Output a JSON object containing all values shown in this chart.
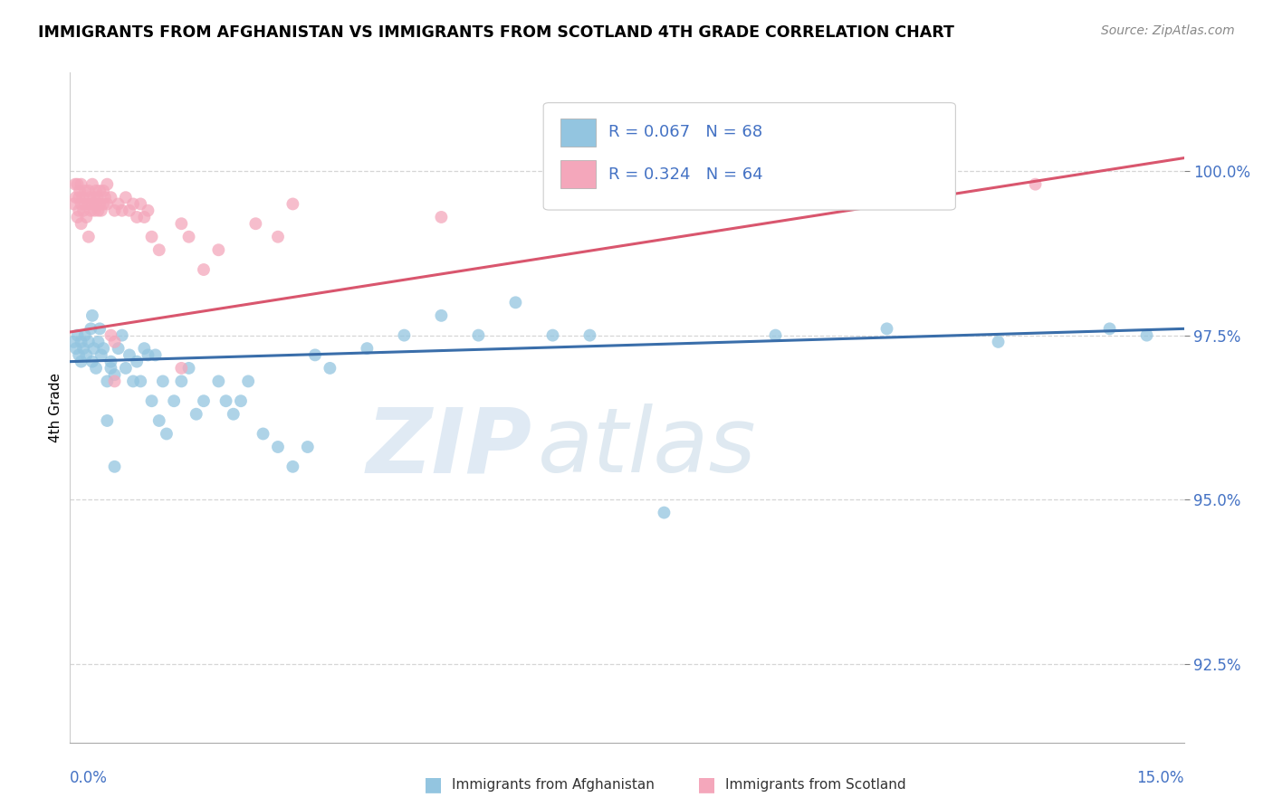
{
  "title": "IMMIGRANTS FROM AFGHANISTAN VS IMMIGRANTS FROM SCOTLAND 4TH GRADE CORRELATION CHART",
  "source": "Source: ZipAtlas.com",
  "ylabel": "4th Grade",
  "xlim": [
    0.0,
    15.0
  ],
  "ylim": [
    91.3,
    101.5
  ],
  "yticks": [
    92.5,
    95.0,
    97.5,
    100.0
  ],
  "ytick_labels": [
    "92.5%",
    "95.0%",
    "97.5%",
    "100.0%"
  ],
  "afghanistan_color": "#93c5e0",
  "scotland_color": "#f4a7bb",
  "afghanistan_line_color": "#3a6eaa",
  "scotland_line_color": "#d9566e",
  "afghanistan_R": 0.067,
  "afghanistan_N": 68,
  "scotland_R": 0.324,
  "scotland_N": 64,
  "afghanistan_label": "Immigrants from Afghanistan",
  "scotland_label": "Immigrants from Scotland",
  "watermark_zip": "ZIP",
  "watermark_atlas": "atlas",
  "af_line_x0": 0.0,
  "af_line_y0": 97.1,
  "af_line_x1": 15.0,
  "af_line_y1": 97.6,
  "sc_line_x0": 0.0,
  "sc_line_y0": 97.55,
  "sc_line_x1": 15.0,
  "sc_line_y1": 100.2,
  "afghanistan_scatter_x": [
    0.05,
    0.08,
    0.1,
    0.12,
    0.15,
    0.15,
    0.18,
    0.2,
    0.22,
    0.25,
    0.28,
    0.3,
    0.3,
    0.32,
    0.35,
    0.38,
    0.4,
    0.42,
    0.45,
    0.5,
    0.55,
    0.6,
    0.65,
    0.7,
    0.75,
    0.8,
    0.85,
    0.9,
    0.95,
    1.0,
    1.1,
    1.15,
    1.2,
    1.3,
    1.4,
    1.5,
    1.6,
    1.7,
    1.8,
    2.0,
    2.1,
    2.2,
    2.4,
    2.6,
    2.8,
    3.0,
    3.2,
    3.5,
    4.0,
    4.5,
    5.0,
    5.5,
    6.0,
    6.5,
    7.0,
    8.0,
    9.5,
    11.0,
    12.5,
    1.05,
    0.5,
    0.6,
    0.55,
    2.3,
    1.25,
    3.3,
    14.5,
    14.0
  ],
  "afghanistan_scatter_y": [
    97.4,
    97.3,
    97.5,
    97.2,
    97.4,
    97.1,
    97.3,
    97.5,
    97.2,
    97.4,
    97.6,
    97.8,
    97.1,
    97.3,
    97.0,
    97.4,
    97.6,
    97.2,
    97.3,
    96.8,
    97.1,
    96.9,
    97.3,
    97.5,
    97.0,
    97.2,
    96.8,
    97.1,
    96.8,
    97.3,
    96.5,
    97.2,
    96.2,
    96.0,
    96.5,
    96.8,
    97.0,
    96.3,
    96.5,
    96.8,
    96.5,
    96.3,
    96.8,
    96.0,
    95.8,
    95.5,
    95.8,
    97.0,
    97.3,
    97.5,
    97.8,
    97.5,
    98.0,
    97.5,
    97.5,
    94.8,
    97.5,
    97.6,
    97.4,
    97.2,
    96.2,
    95.5,
    97.0,
    96.5,
    96.8,
    97.2,
    97.5,
    97.6
  ],
  "scotland_scatter_x": [
    0.05,
    0.07,
    0.08,
    0.1,
    0.1,
    0.12,
    0.12,
    0.13,
    0.15,
    0.15,
    0.17,
    0.18,
    0.2,
    0.2,
    0.22,
    0.25,
    0.25,
    0.27,
    0.28,
    0.3,
    0.3,
    0.32,
    0.33,
    0.35,
    0.35,
    0.37,
    0.38,
    0.4,
    0.4,
    0.42,
    0.45,
    0.45,
    0.47,
    0.5,
    0.5,
    0.55,
    0.6,
    0.65,
    0.7,
    0.75,
    0.8,
    0.85,
    0.9,
    0.95,
    1.0,
    1.05,
    1.1,
    1.2,
    1.5,
    1.6,
    1.8,
    2.0,
    2.5,
    0.55,
    0.6,
    2.8,
    0.15,
    0.25,
    3.0,
    5.0,
    11.5,
    13.0,
    0.6,
    1.5
  ],
  "scotland_scatter_y": [
    99.5,
    99.8,
    99.6,
    99.8,
    99.3,
    99.6,
    99.4,
    99.7,
    99.8,
    99.5,
    99.6,
    99.4,
    99.7,
    99.5,
    99.3,
    99.7,
    99.5,
    99.6,
    99.4,
    99.8,
    99.5,
    99.6,
    99.4,
    99.7,
    99.5,
    99.6,
    99.4,
    99.7,
    99.5,
    99.4,
    99.7,
    99.5,
    99.6,
    99.8,
    99.5,
    99.6,
    99.4,
    99.5,
    99.4,
    99.6,
    99.4,
    99.5,
    99.3,
    99.5,
    99.3,
    99.4,
    99.0,
    98.8,
    99.2,
    99.0,
    98.5,
    98.8,
    99.2,
    97.5,
    96.8,
    99.0,
    99.2,
    99.0,
    99.5,
    99.3,
    100.1,
    99.8,
    97.4,
    97.0
  ]
}
